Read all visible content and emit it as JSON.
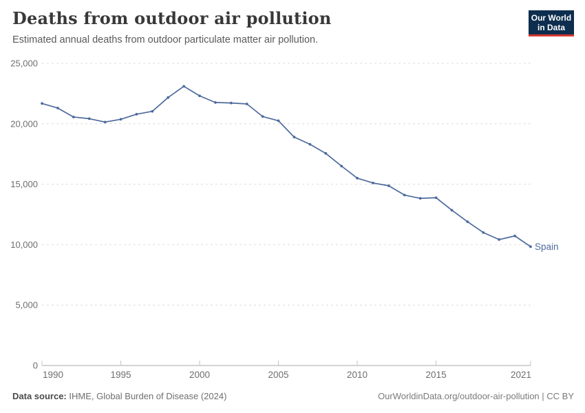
{
  "logo": {
    "line1": "Our World",
    "line2": "in Data"
  },
  "footer": {
    "source_label": "Data source:",
    "source_value": " IHME, Global Burden of Disease (2024)",
    "credit": "OurWorldinData.org/outdoor-air-pollution | CC BY"
  },
  "chart_data": {
    "type": "line",
    "title": "Deaths from outdoor air pollution",
    "subtitle": "Estimated annual deaths from outdoor particulate matter air pollution.",
    "xlabel": "",
    "ylabel": "",
    "xlim": [
      1990,
      2021
    ],
    "ylim": [
      0,
      25000
    ],
    "x_ticks": [
      1990,
      1995,
      2000,
      2005,
      2010,
      2015,
      2021
    ],
    "y_ticks": [
      0,
      5000,
      10000,
      15000,
      20000,
      25000
    ],
    "y_tick_labels": [
      "0",
      "5,000",
      "10,000",
      "15,000",
      "20,000",
      "25,000"
    ],
    "grid": "horizontal-dashed",
    "legend_position": "end-of-line-label",
    "x": [
      1990,
      1991,
      1992,
      1993,
      1994,
      1995,
      1996,
      1997,
      1998,
      1999,
      2000,
      2001,
      2002,
      2003,
      2004,
      2005,
      2006,
      2007,
      2008,
      2009,
      2010,
      2011,
      2012,
      2013,
      2014,
      2015,
      2016,
      2017,
      2018,
      2019,
      2020,
      2021
    ],
    "series": [
      {
        "name": "Spain",
        "color": "#4c6a9c",
        "values": [
          21680,
          21300,
          20560,
          20420,
          20140,
          20370,
          20790,
          21030,
          22170,
          23100,
          22310,
          21760,
          21720,
          21640,
          20600,
          20250,
          18900,
          18300,
          17550,
          16500,
          15500,
          15100,
          14870,
          14100,
          13830,
          13880,
          12850,
          11890,
          11000,
          10420,
          10720,
          9830
        ]
      }
    ],
    "colors": {
      "line": "#4c6a9c",
      "grid": "#dcdcdc",
      "axis_line": "#a8a8a8",
      "tick": "#c4c4c4",
      "axis_text": "#6e6e6e"
    }
  }
}
